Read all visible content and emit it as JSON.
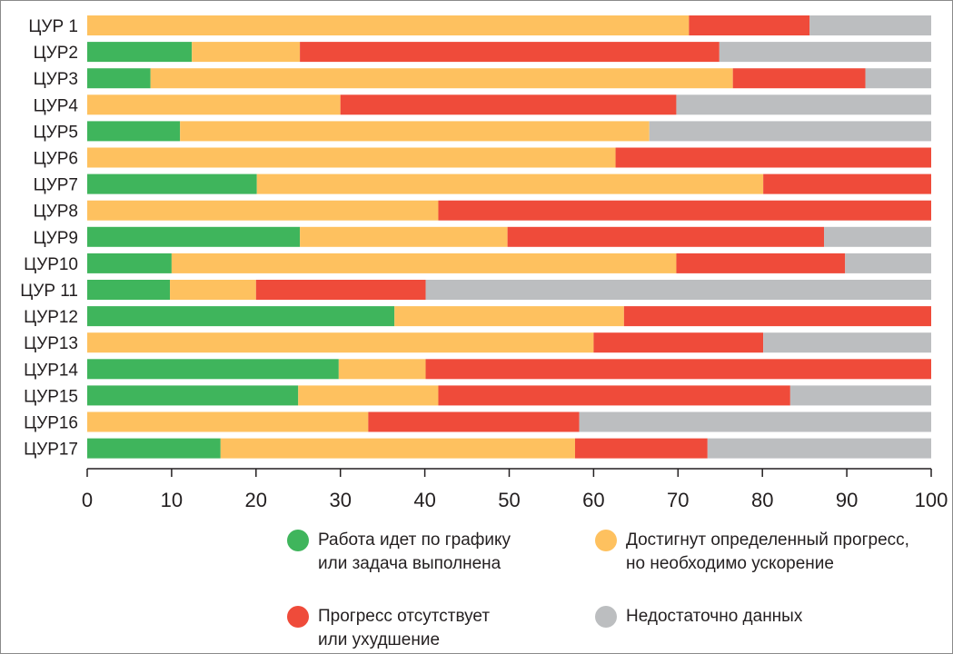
{
  "chart_data": {
    "type": "bar",
    "orientation": "horizontal",
    "stacked": true,
    "categories": [
      "ЦУР 1",
      "ЦУР2",
      "ЦУР3",
      "ЦУР4",
      "ЦУР5",
      "ЦУР6",
      "ЦУР7",
      "ЦУР8",
      "ЦУР9",
      "ЦУР10",
      "ЦУР 11",
      "ЦУР12",
      "ЦУР13",
      "ЦУР14",
      "ЦУР15",
      "ЦУР16",
      "ЦУР17"
    ],
    "series": [
      {
        "name": "Работа идет по графику\nили задача выполнена",
        "color": "#3fb55c",
        "values": [
          0,
          12.4,
          7.5,
          0,
          11,
          0,
          20.1,
          0,
          25.2,
          10,
          9.8,
          36.4,
          0,
          29.8,
          25,
          0,
          15.8
        ]
      },
      {
        "name": "Достигнут определенный прогресс,\nно необходимо ускорение",
        "color": "#fec15f",
        "values": [
          71.3,
          12.8,
          69,
          30,
          55.6,
          62.6,
          60,
          41.6,
          24.6,
          59.8,
          10.2,
          27.2,
          60,
          10.3,
          16.6,
          33.3,
          42
        ]
      },
      {
        "name": "Прогресс отсутствует\nили ухудшение",
        "color": "#ef4b3a",
        "values": [
          14.3,
          49.7,
          15.7,
          39.8,
          0,
          37.4,
          19.9,
          58.4,
          37.5,
          20,
          20.1,
          36.4,
          20.1,
          59.9,
          41.7,
          25,
          15.7
        ]
      },
      {
        "name": "Недостаточно данных",
        "color": "#bcbec0",
        "values": [
          14.4,
          25.1,
          7.8,
          30.2,
          33.4,
          0,
          0,
          0,
          12.7,
          10.2,
          59.9,
          0,
          19.9,
          0,
          16.7,
          41.7,
          26.5
        ]
      }
    ],
    "xticks": [
      "0",
      "10",
      "20",
      "30",
      "40",
      "50",
      "60",
      "70",
      "80",
      "90",
      "100"
    ],
    "xlim": [
      0,
      100
    ],
    "grid": false,
    "legend_position": "bottom"
  },
  "colors": {
    "axis": "#231f20",
    "background": "#ffffff"
  }
}
